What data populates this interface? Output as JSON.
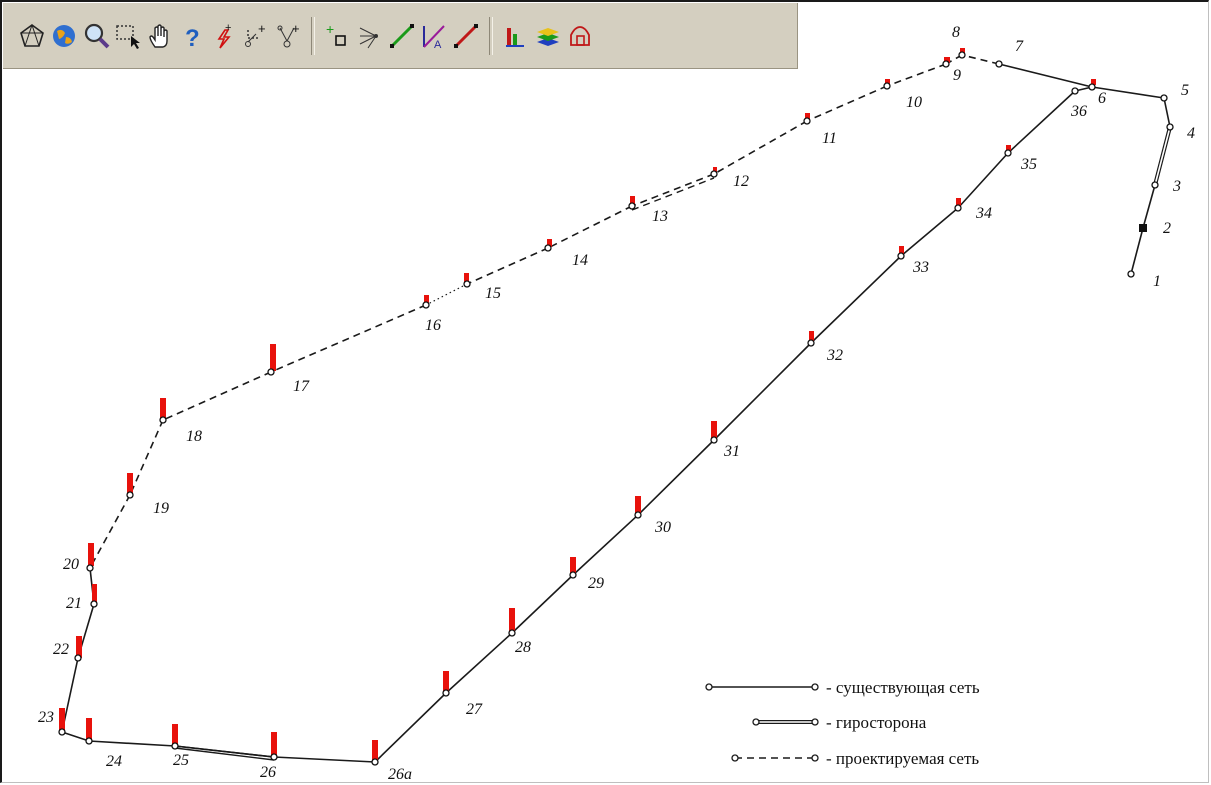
{
  "toolbar": {
    "tools": [
      {
        "icon": "network-pentagon-icon"
      },
      {
        "icon": "globe-icon"
      },
      {
        "icon": "magnifier-icon"
      },
      {
        "icon": "select-rectangle-icon"
      },
      {
        "icon": "pan-hand-icon"
      },
      {
        "icon": "help-question-icon"
      },
      {
        "icon": "add-lightning-icon"
      },
      {
        "icon": "add-angle-icon"
      },
      {
        "icon": "add-branch-icon"
      },
      {
        "icon": "add-point-icon"
      },
      {
        "icon": "directions-icon"
      },
      {
        "icon": "draw-line-green-icon"
      },
      {
        "icon": "angle-measure-icon"
      },
      {
        "icon": "draw-line-red-icon"
      },
      {
        "icon": "bar-chart-icon"
      },
      {
        "icon": "layers-icon"
      },
      {
        "icon": "house-shape-icon"
      }
    ],
    "separators_after": [
      8,
      13
    ]
  },
  "points": [
    {
      "id": "1",
      "label": "1"
    },
    {
      "id": "2",
      "label": "2"
    },
    {
      "id": "3",
      "label": "3"
    },
    {
      "id": "4",
      "label": "4"
    },
    {
      "id": "5",
      "label": "5"
    },
    {
      "id": "6",
      "label": "6"
    },
    {
      "id": "7",
      "label": "7"
    },
    {
      "id": "8",
      "label": "8"
    },
    {
      "id": "9",
      "label": "9"
    },
    {
      "id": "10",
      "label": "10"
    },
    {
      "id": "11",
      "label": "11"
    },
    {
      "id": "12",
      "label": "12"
    },
    {
      "id": "13",
      "label": "13"
    },
    {
      "id": "14",
      "label": "14"
    },
    {
      "id": "15",
      "label": "15"
    },
    {
      "id": "16",
      "label": "16"
    },
    {
      "id": "17",
      "label": "17"
    },
    {
      "id": "18",
      "label": "18"
    },
    {
      "id": "19",
      "label": "19"
    },
    {
      "id": "20",
      "label": "20"
    },
    {
      "id": "21",
      "label": "21"
    },
    {
      "id": "22",
      "label": "22"
    },
    {
      "id": "23",
      "label": "23"
    },
    {
      "id": "24",
      "label": "24"
    },
    {
      "id": "25",
      "label": "25"
    },
    {
      "id": "26",
      "label": "26"
    },
    {
      "id": "26a",
      "label": "26а"
    },
    {
      "id": "27",
      "label": "27"
    },
    {
      "id": "28",
      "label": "28"
    },
    {
      "id": "29",
      "label": "29"
    },
    {
      "id": "30",
      "label": "30"
    },
    {
      "id": "31",
      "label": "31"
    },
    {
      "id": "32",
      "label": "32"
    },
    {
      "id": "33",
      "label": "33"
    },
    {
      "id": "34",
      "label": "34"
    },
    {
      "id": "35",
      "label": "35"
    },
    {
      "id": "36",
      "label": "36"
    }
  ],
  "segments": {
    "existing": [
      [
        "1",
        "2"
      ],
      [
        "2",
        "3"
      ],
      [
        "5",
        "6"
      ],
      [
        "6",
        "7"
      ],
      [
        "6",
        "36"
      ],
      [
        "36",
        "35"
      ],
      [
        "35",
        "34"
      ],
      [
        "34",
        "33"
      ],
      [
        "33",
        "32"
      ],
      [
        "32",
        "31"
      ],
      [
        "31",
        "30"
      ],
      [
        "30",
        "29"
      ],
      [
        "29",
        "28"
      ],
      [
        "28",
        "27"
      ],
      [
        "27",
        "26a"
      ],
      [
        "26a",
        "26"
      ],
      [
        "26",
        "25"
      ],
      [
        "25",
        "24"
      ],
      [
        "24",
        "23"
      ],
      [
        "23",
        "22"
      ],
      [
        "22",
        "21"
      ],
      [
        "21",
        "20"
      ]
    ],
    "gyro": [
      [
        "3",
        "4"
      ]
    ],
    "projected": [
      [
        "7",
        "8"
      ],
      [
        "8",
        "9"
      ],
      [
        "9",
        "10"
      ],
      [
        "10",
        "11"
      ],
      [
        "11",
        "12"
      ],
      [
        "12",
        "13"
      ],
      [
        "13",
        "14"
      ],
      [
        "14",
        "15"
      ],
      [
        "16",
        "17"
      ],
      [
        "17",
        "18"
      ],
      [
        "18",
        "19"
      ],
      [
        "19",
        "20"
      ]
    ],
    "dotted": [
      [
        "15",
        "16"
      ]
    ],
    "extra_existing": [
      [
        "4",
        "5"
      ],
      [
        "25",
        "26"
      ]
    ]
  },
  "legend": {
    "existing_label": "- существующая сеть",
    "gyro_label": "- гиросторона",
    "projected_label": "- проектируемая сеть"
  },
  "colors": {
    "marker_red": "#e8120c",
    "line": "#1a1a1a",
    "toolbar_bg": "#d4cfc0"
  }
}
